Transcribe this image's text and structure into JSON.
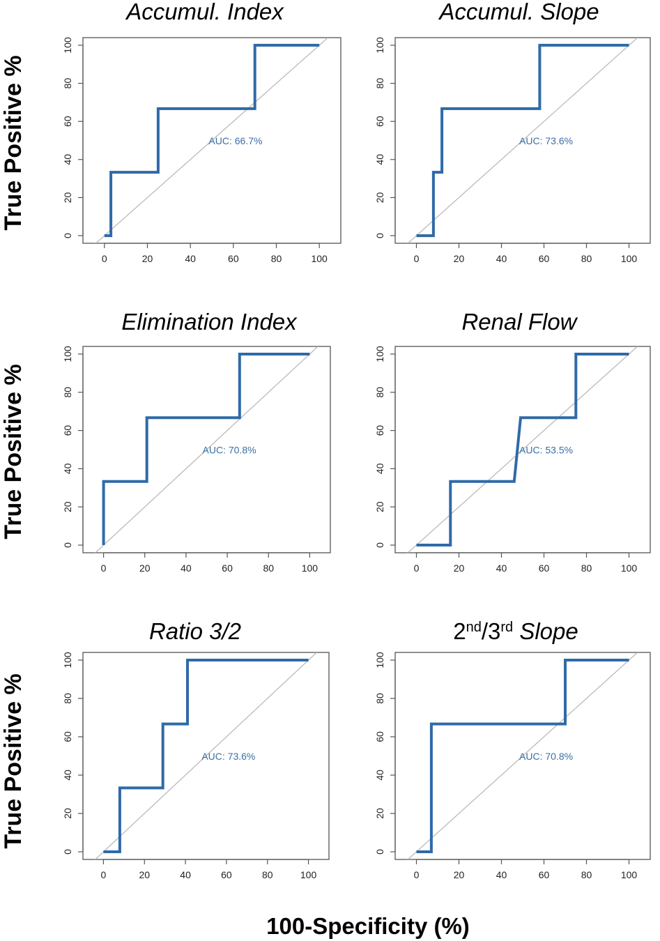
{
  "ylabel": "True Positive %",
  "xlabel": "100-Specificity (%)",
  "colors": {
    "roc": "#2f6aa8",
    "diagonal": "#b5b5b5",
    "auc_text": "#3a6ea5",
    "frame": "#555555"
  },
  "chart_data": [
    {
      "type": "line",
      "title": "Accumul. Index",
      "title_parts": [
        {
          "text": "Accumul. Index",
          "sup": false
        }
      ],
      "auc_label": "AUC: 66.7%",
      "x": [
        0,
        3,
        3,
        25,
        25,
        70,
        70,
        100
      ],
      "y": [
        0,
        0,
        33.3,
        33.3,
        66.7,
        66.7,
        100,
        100
      ],
      "xticks": [
        0,
        20,
        40,
        60,
        80,
        100
      ],
      "yticks": [
        0,
        20,
        40,
        60,
        80,
        100
      ],
      "xlim": [
        -10,
        110
      ],
      "ylim": [
        -4,
        104
      ],
      "diagonal": true
    },
    {
      "type": "line",
      "title": "Accumul. Slope",
      "title_parts": [
        {
          "text": "Accumul. Slope",
          "sup": false
        }
      ],
      "auc_label": "AUC: 73.6%",
      "x": [
        0,
        8,
        8,
        12,
        12,
        58,
        58,
        100
      ],
      "y": [
        0,
        0,
        33.3,
        33.3,
        66.7,
        66.7,
        100,
        100
      ],
      "xticks": [
        0,
        20,
        40,
        60,
        80,
        100
      ],
      "yticks": [
        0,
        20,
        40,
        60,
        80,
        100
      ],
      "xlim": [
        -10,
        110
      ],
      "ylim": [
        -4,
        104
      ],
      "diagonal": true
    },
    {
      "type": "line",
      "title": "Elimination Index",
      "title_parts": [
        {
          "text": "Elimination Index",
          "sup": false
        }
      ],
      "auc_label": "AUC: 70.8%",
      "x": [
        0,
        0,
        21,
        21,
        66,
        66,
        100
      ],
      "y": [
        0,
        33.3,
        33.3,
        66.7,
        66.7,
        100,
        100
      ],
      "xticks": [
        0,
        20,
        40,
        60,
        80,
        100
      ],
      "yticks": [
        0,
        20,
        40,
        60,
        80,
        100
      ],
      "xlim": [
        -10,
        110
      ],
      "ylim": [
        -4,
        104
      ],
      "diagonal": true
    },
    {
      "type": "line",
      "title": "Renal Flow",
      "title_parts": [
        {
          "text": "Renal Flow",
          "sup": false
        }
      ],
      "auc_label": "AUC: 53.5%",
      "x": [
        0,
        16,
        16,
        46,
        49,
        75,
        75,
        100
      ],
      "y": [
        0,
        0,
        33.3,
        33.3,
        66.7,
        66.7,
        100,
        100
      ],
      "xticks": [
        0,
        20,
        40,
        60,
        80,
        100
      ],
      "yticks": [
        0,
        20,
        40,
        60,
        80,
        100
      ],
      "xlim": [
        -10,
        110
      ],
      "ylim": [
        -4,
        104
      ],
      "diagonal": true
    },
    {
      "type": "line",
      "title": "Ratio 3/2",
      "title_parts": [
        {
          "text": "Ratio 3/2",
          "sup": false
        }
      ],
      "auc_label": "AUC: 73.6%",
      "x": [
        0,
        8,
        8,
        29,
        29,
        41,
        41,
        100
      ],
      "y": [
        0,
        0,
        33.3,
        33.3,
        66.7,
        66.7,
        100,
        100
      ],
      "xticks": [
        0,
        20,
        40,
        60,
        80,
        100
      ],
      "yticks": [
        0,
        20,
        40,
        60,
        80,
        100
      ],
      "xlim": [
        -10,
        110
      ],
      "ylim": [
        -4,
        104
      ],
      "diagonal": true
    },
    {
      "type": "line",
      "title": "2nd/3rd Slope",
      "title_parts": [
        {
          "text": "2",
          "sup": false
        },
        {
          "text": "nd",
          "sup": true
        },
        {
          "text": "/3",
          "sup": false
        },
        {
          "text": "rd",
          "sup": true
        },
        {
          "text": " Slope",
          "sup": false,
          "italic": true
        }
      ],
      "auc_label": "AUC: 70.8%",
      "x": [
        0,
        7,
        7,
        70,
        70,
        100
      ],
      "y": [
        0,
        0,
        66.7,
        66.7,
        100,
        100
      ],
      "xticks": [
        0,
        20,
        40,
        60,
        80,
        100
      ],
      "yticks": [
        0,
        20,
        40,
        60,
        80,
        100
      ],
      "xlim": [
        -10,
        110
      ],
      "ylim": [
        -4,
        104
      ],
      "diagonal": true
    }
  ]
}
